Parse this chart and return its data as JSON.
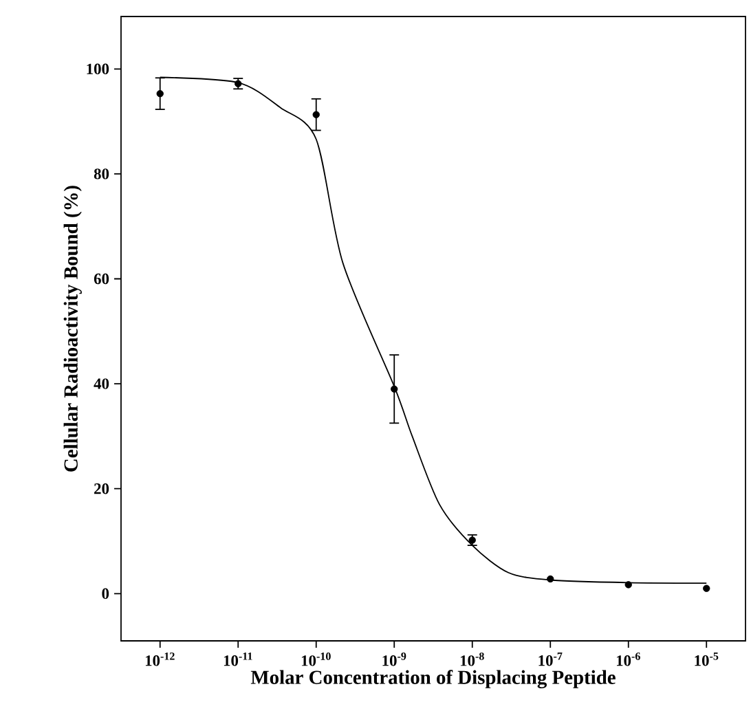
{
  "chart_data": {
    "type": "scatter",
    "xlabel": "Molar Concentration of Displacing Peptide",
    "ylabel": "Cellular Radioactivity Bound (%)",
    "log": "x",
    "xlim": [
      3.162e-13,
      3.162e-05
    ],
    "ylim": [
      -9,
      110
    ],
    "xticks": [
      {
        "value": 1e-12,
        "label": "10$^{-12}$"
      },
      {
        "value": 1e-11,
        "label": "10$^{-11}$"
      },
      {
        "value": 1e-10,
        "label": "10$^{-10}$"
      },
      {
        "value": 1e-09,
        "label": "10$^{-9}$"
      },
      {
        "value": 1e-08,
        "label": "10$^{-8}$"
      },
      {
        "value": 1e-07,
        "label": "10$^{-7}$"
      },
      {
        "value": 1e-06,
        "label": "10$^{-6}$"
      },
      {
        "value": 1e-05,
        "label": "10$^{-5}$"
      }
    ],
    "yticks": [
      0,
      20,
      40,
      60,
      80,
      100
    ],
    "series": [
      {
        "type": "line",
        "color": "#000000",
        "marker": "none",
        "x": [
          1e-12,
          1e-11,
          3.5e-11,
          1e-10,
          2.2e-10,
          1e-09,
          1.7e-09,
          3.8e-09,
          1e-08,
          2.9e-08,
          1e-07,
          1e-06,
          1e-05
        ],
        "values": [
          98.4,
          97.4,
          92.6,
          86.6,
          63,
          39.5,
          30,
          17,
          9.2,
          4,
          2.6,
          2.1,
          2.0
        ]
      },
      {
        "color": "#000000",
        "marker": "circle",
        "x": [
          1e-12,
          1e-11,
          1e-10,
          1e-09,
          1e-08,
          1e-07,
          1e-06,
          1e-05
        ],
        "values": [
          95.3,
          97.2,
          91.3,
          39,
          10.2,
          2.8,
          1.7,
          1.0
        ],
        "errors": [
          3,
          1,
          3,
          6.5,
          1,
          null,
          null,
          null
        ]
      }
    ]
  }
}
